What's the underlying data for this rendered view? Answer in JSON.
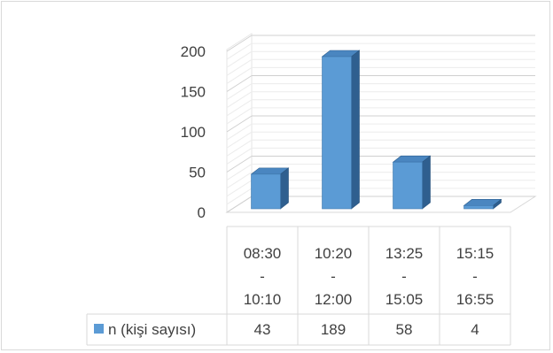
{
  "chart_data": {
    "type": "bar",
    "style": "3d-column",
    "categories": [
      [
        "08:30",
        "-",
        "10:10"
      ],
      [
        "10:20",
        "-",
        "12:00"
      ],
      [
        "13:25",
        "-",
        "15:05"
      ],
      [
        "15:15",
        "-",
        "16:55"
      ]
    ],
    "series": [
      {
        "name": "n (kişi sayısı)",
        "values": [
          43,
          189,
          58,
          4
        ],
        "color": "#5b9bd5"
      }
    ],
    "yticks": [
      "0",
      "50",
      "100",
      "150",
      "200"
    ],
    "ylim": [
      0,
      200
    ],
    "grid": true,
    "data_table": true,
    "legend_placement": "data-table-left"
  }
}
